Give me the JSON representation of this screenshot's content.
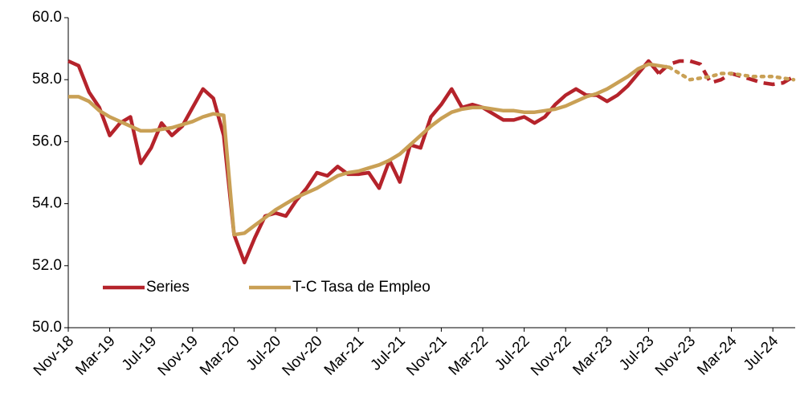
{
  "chart_data": {
    "type": "line",
    "categories": [
      "Nov-18",
      null,
      null,
      null,
      "Mar-19",
      null,
      null,
      null,
      "Jul-19",
      null,
      null,
      null,
      "Nov-19",
      null,
      null,
      null,
      "Mar-20",
      null,
      null,
      null,
      "Jul-20",
      null,
      null,
      null,
      "Nov-20",
      null,
      null,
      null,
      "Mar-21",
      null,
      null,
      null,
      "Jul-21",
      null,
      null,
      null,
      "Nov-21",
      null,
      null,
      null,
      "Mar-22",
      null,
      null,
      null,
      "Jul-22",
      null,
      null,
      null,
      "Nov-22",
      null,
      null,
      null,
      "Mar-23",
      null,
      null,
      null,
      "Jul-23",
      null,
      null,
      null,
      "Nov-23",
      null,
      null,
      null,
      "Mar-24",
      null,
      null,
      null,
      "Jul-24",
      null,
      null
    ],
    "series": [
      {
        "name": "Series",
        "color": "#b5232b",
        "dash_from": 57,
        "dash_style": "dashed",
        "values": [
          58.6,
          58.45,
          57.6,
          57.1,
          56.2,
          56.6,
          56.8,
          55.3,
          55.8,
          56.6,
          56.2,
          56.5,
          57.1,
          57.7,
          57.4,
          56.2,
          53.0,
          52.1,
          52.9,
          53.6,
          53.7,
          53.6,
          54.1,
          54.5,
          55.0,
          54.9,
          55.2,
          54.95,
          54.95,
          55.0,
          54.5,
          55.4,
          54.7,
          55.9,
          55.8,
          56.8,
          57.2,
          57.7,
          57.1,
          57.2,
          57.1,
          56.9,
          56.7,
          56.7,
          56.8,
          56.6,
          56.8,
          57.2,
          57.5,
          57.7,
          57.5,
          57.5,
          57.3,
          57.5,
          57.8,
          58.2,
          58.6,
          58.2,
          58.5,
          58.6,
          58.6,
          58.5,
          57.9,
          58.0,
          58.2,
          58.1,
          58.0,
          57.9,
          57.85,
          57.9,
          58.1
        ]
      },
      {
        "name": "T-C Tasa de Empleo",
        "color": "#c9a055",
        "dash_from": 58,
        "dash_style": "dotted",
        "values": [
          57.45,
          57.45,
          57.3,
          57.0,
          56.8,
          56.65,
          56.5,
          56.35,
          56.35,
          56.4,
          56.45,
          56.55,
          56.65,
          56.8,
          56.9,
          56.85,
          53.0,
          53.05,
          53.3,
          53.55,
          53.8,
          54.0,
          54.2,
          54.35,
          54.5,
          54.7,
          54.9,
          55.0,
          55.05,
          55.15,
          55.25,
          55.4,
          55.6,
          55.9,
          56.2,
          56.5,
          56.75,
          56.95,
          57.05,
          57.1,
          57.1,
          57.05,
          57.0,
          57.0,
          56.95,
          56.95,
          57.0,
          57.05,
          57.15,
          57.3,
          57.45,
          57.55,
          57.7,
          57.9,
          58.1,
          58.35,
          58.5,
          58.45,
          58.4,
          58.2,
          58.0,
          58.05,
          58.1,
          58.2,
          58.2,
          58.15,
          58.1,
          58.1,
          58.1,
          58.05,
          58.0
        ]
      }
    ],
    "ylim": [
      50,
      60
    ],
    "yticks": [
      {
        "value": 50,
        "label": "50.0"
      },
      {
        "value": 52,
        "label": "52.0"
      },
      {
        "value": 54,
        "label": "54.0"
      },
      {
        "value": 56,
        "label": "56.0"
      },
      {
        "value": 58,
        "label": "58.0"
      },
      {
        "value": 60,
        "label": "60.0"
      }
    ],
    "grid": false,
    "legend": "lower left"
  }
}
